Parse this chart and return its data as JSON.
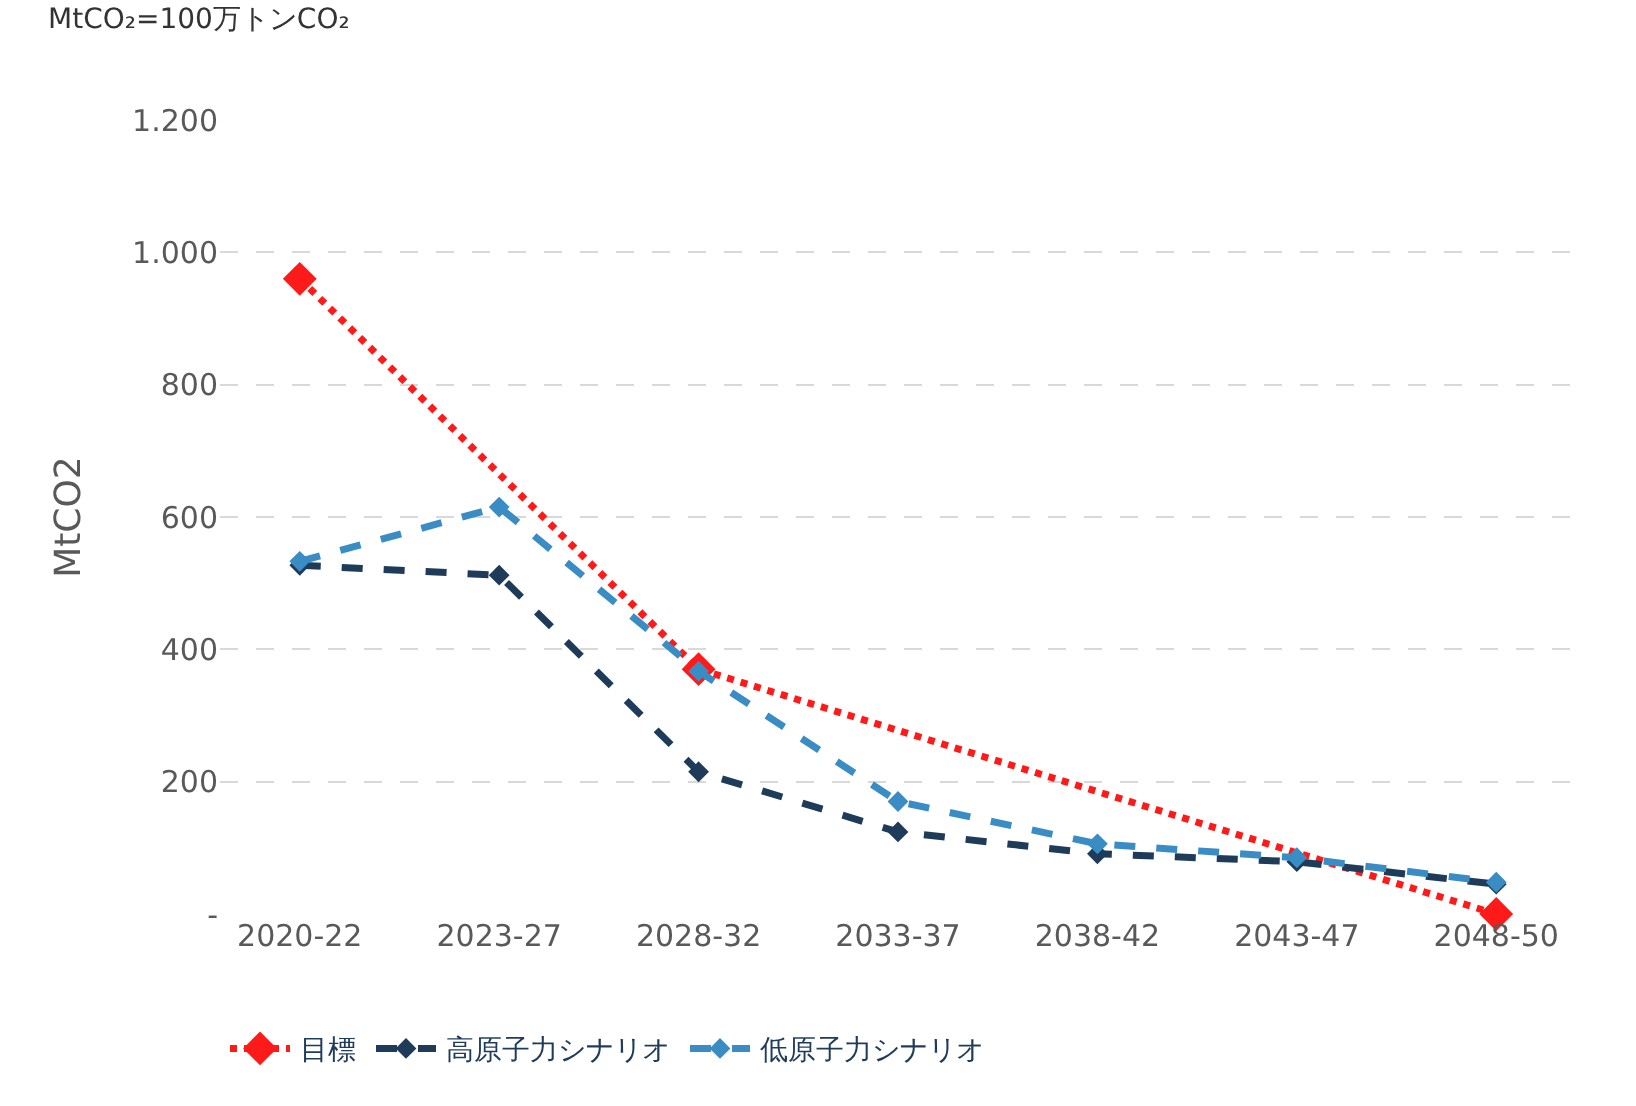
{
  "chart_data": {
    "type": "line",
    "ylabel": "MtCO2",
    "annotations": [
      "MtCO₂=100万トンCO₂"
    ],
    "categories": [
      "2020-22",
      "2023-27",
      "2028-32",
      "2033-37",
      "2038-42",
      "2043-47",
      "2048-50"
    ],
    "series": [
      {
        "name": "目標",
        "color": "#ff1a1a",
        "values": [
          960,
          null,
          370,
          null,
          null,
          null,
          0
        ],
        "line_style": "dotted"
      },
      {
        "name": "高原子力シナリオ",
        "color": "#1f3b5a",
        "values": [
          527,
          512,
          215,
          124,
          91,
          79,
          45
        ],
        "line_style": "dashed"
      },
      {
        "name": "低原子力シナリオ",
        "color": "#3a8cc4",
        "values": [
          533,
          615,
          367,
          170,
          106,
          85,
          48
        ],
        "line_style": "dashed"
      }
    ],
    "ylim": [
      0,
      1200
    ],
    "yticks": [
      {
        "value": 0,
        "label": "-"
      },
      200,
      400,
      600,
      800,
      {
        "value": 1000,
        "label": "1.000"
      },
      {
        "value": 1200,
        "label": "1.200"
      }
    ],
    "grid": "y",
    "legend": "bottom",
    "marker": "diamond"
  }
}
